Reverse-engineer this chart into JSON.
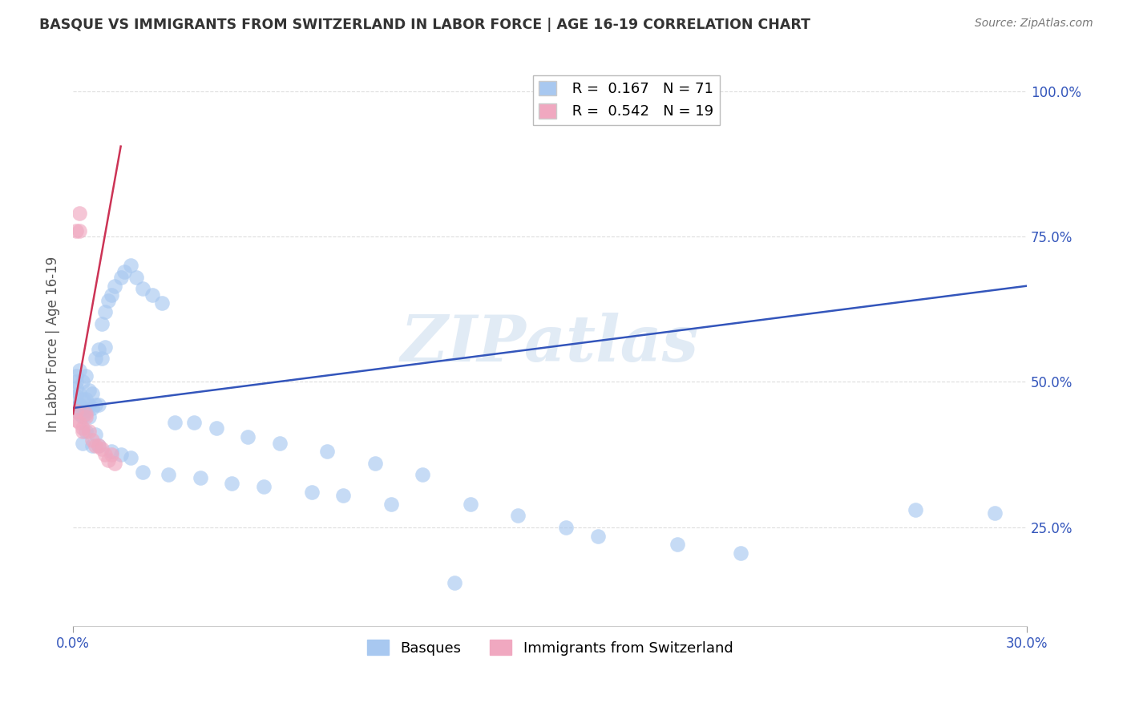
{
  "title": "BASQUE VS IMMIGRANTS FROM SWITZERLAND IN LABOR FORCE | AGE 16-19 CORRELATION CHART",
  "source_text": "Source: ZipAtlas.com",
  "ylabel": "In Labor Force | Age 16-19",
  "watermark": "ZIPatlas",
  "xlim": [
    0.0,
    0.3
  ],
  "ylim": [
    0.08,
    1.05
  ],
  "yticks": [
    0.25,
    0.5,
    0.75,
    1.0
  ],
  "ytick_labels": [
    "25.0%",
    "50.0%",
    "75.0%",
    "100.0%"
  ],
  "basque_color": "#a8c8f0",
  "swiss_color": "#f0a8c0",
  "basque_line_color": "#3355bb",
  "swiss_line_color": "#cc3355",
  "grid_color": "#dddddd",
  "blue_line_x": [
    0.0,
    0.3
  ],
  "blue_line_y": [
    0.455,
    0.665
  ],
  "pink_line_x": [
    0.0,
    0.015
  ],
  "pink_line_y": [
    0.445,
    0.905
  ],
  "basque_x": [
    0.001,
    0.001,
    0.001,
    0.001,
    0.001,
    0.002,
    0.002,
    0.002,
    0.002,
    0.003,
    0.003,
    0.003,
    0.003,
    0.004,
    0.004,
    0.004,
    0.005,
    0.005,
    0.005,
    0.006,
    0.006,
    0.007,
    0.007,
    0.008,
    0.008,
    0.009,
    0.009,
    0.01,
    0.01,
    0.011,
    0.012,
    0.013,
    0.015,
    0.016,
    0.018,
    0.02,
    0.022,
    0.025,
    0.028,
    0.032,
    0.038,
    0.045,
    0.055,
    0.065,
    0.08,
    0.095,
    0.11,
    0.125,
    0.14,
    0.155,
    0.165,
    0.19,
    0.21,
    0.265,
    0.29,
    0.003,
    0.004,
    0.006,
    0.007,
    0.008,
    0.012,
    0.015,
    0.018,
    0.022,
    0.03,
    0.04,
    0.05,
    0.06,
    0.075,
    0.085,
    0.1,
    0.12
  ],
  "basque_y": [
    0.455,
    0.475,
    0.49,
    0.5,
    0.51,
    0.445,
    0.46,
    0.48,
    0.52,
    0.44,
    0.455,
    0.47,
    0.5,
    0.45,
    0.47,
    0.51,
    0.44,
    0.46,
    0.485,
    0.455,
    0.48,
    0.46,
    0.54,
    0.46,
    0.555,
    0.54,
    0.6,
    0.56,
    0.62,
    0.64,
    0.65,
    0.665,
    0.68,
    0.69,
    0.7,
    0.68,
    0.66,
    0.65,
    0.635,
    0.43,
    0.43,
    0.42,
    0.405,
    0.395,
    0.38,
    0.36,
    0.34,
    0.29,
    0.27,
    0.25,
    0.235,
    0.22,
    0.205,
    0.28,
    0.275,
    0.395,
    0.415,
    0.39,
    0.41,
    0.39,
    0.38,
    0.375,
    0.37,
    0.345,
    0.34,
    0.335,
    0.325,
    0.32,
    0.31,
    0.305,
    0.29,
    0.155
  ],
  "swiss_x": [
    0.001,
    0.001,
    0.001,
    0.002,
    0.002,
    0.002,
    0.003,
    0.003,
    0.004,
    0.004,
    0.005,
    0.006,
    0.007,
    0.008,
    0.009,
    0.01,
    0.011,
    0.012,
    0.013
  ],
  "swiss_y": [
    0.435,
    0.45,
    0.76,
    0.76,
    0.79,
    0.43,
    0.415,
    0.42,
    0.44,
    0.445,
    0.415,
    0.4,
    0.39,
    0.39,
    0.385,
    0.375,
    0.365,
    0.375,
    0.36
  ]
}
